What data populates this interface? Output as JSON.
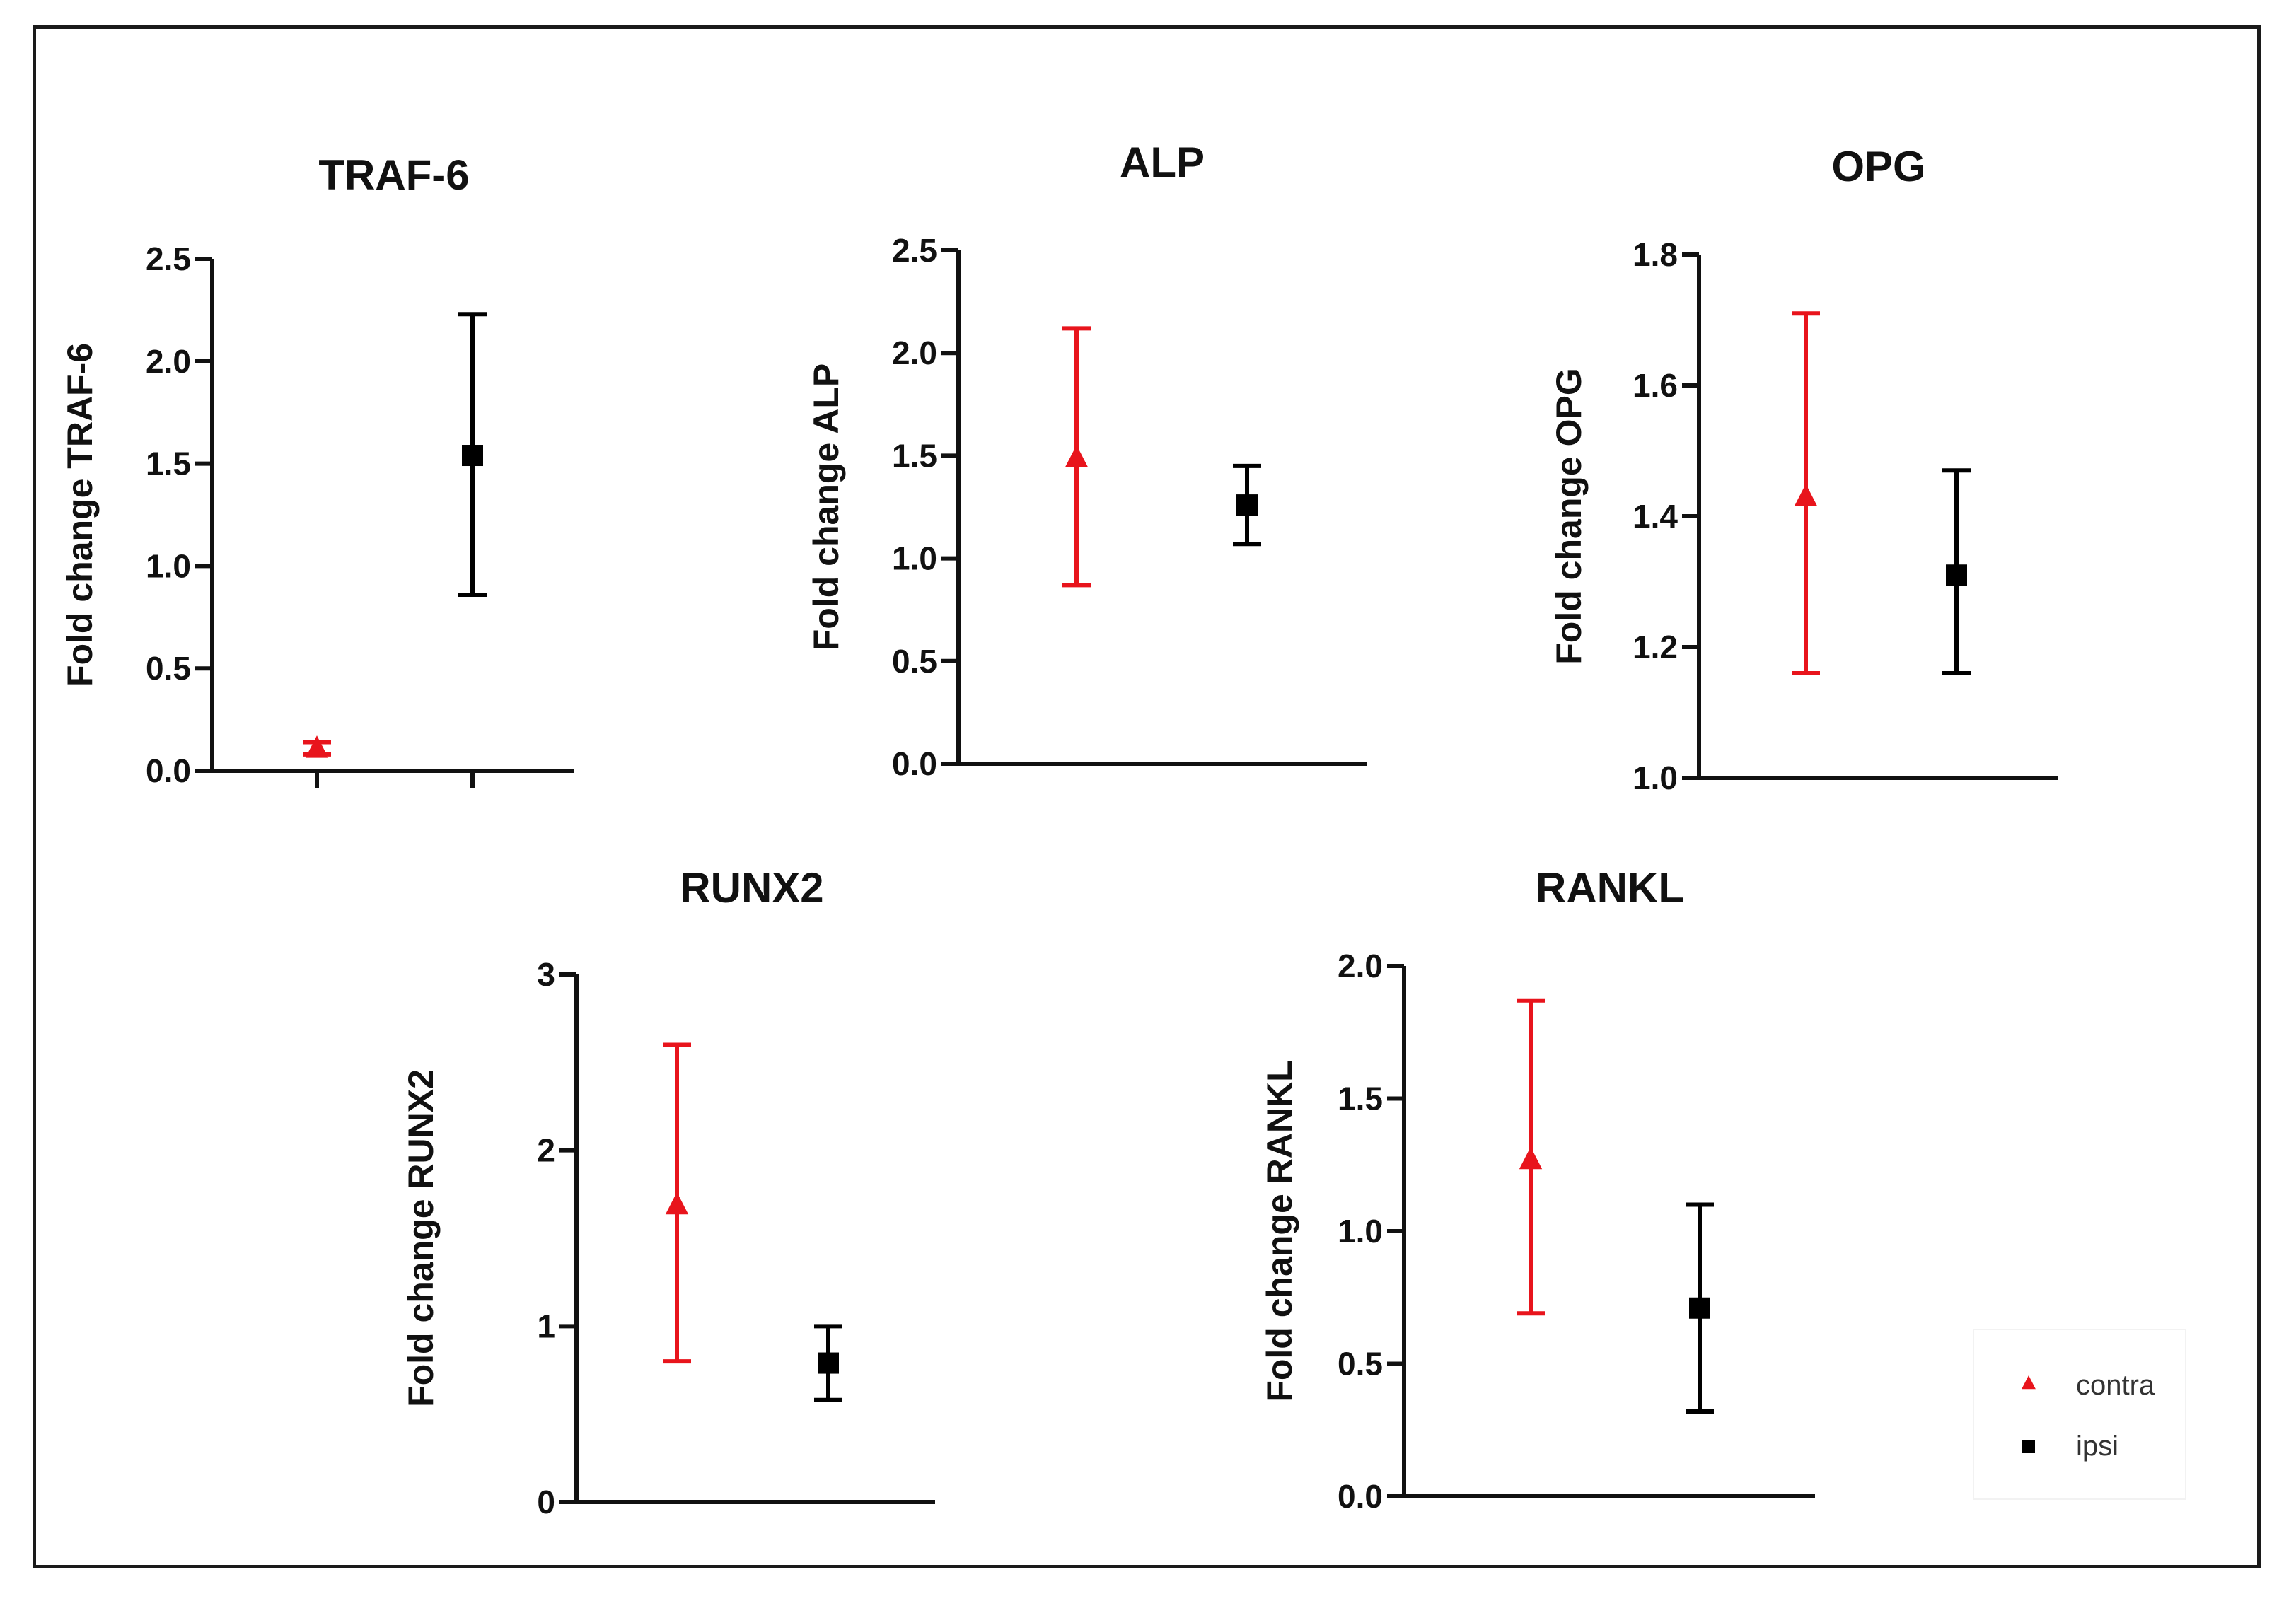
{
  "chart_data": [
    {
      "type": "scatter",
      "title": "TRAF-6",
      "ylabel": "Fold change TRAF-6",
      "xlabel": "",
      "ylim": [
        0,
        2.5
      ],
      "yticks": [
        0.0,
        0.5,
        1.0,
        1.5,
        2.0,
        2.5
      ],
      "ytick_labels": [
        "0.0",
        "0.5",
        "1.0",
        "1.5",
        "2.0",
        "2.5"
      ],
      "series": [
        {
          "name": "contra",
          "mean": 0.11,
          "low": 0.08,
          "high": 0.14
        },
        {
          "name": "ipsi",
          "mean": 1.54,
          "low": 0.86,
          "high": 2.23
        }
      ]
    },
    {
      "type": "scatter",
      "title": "ALP",
      "ylabel": "Fold change ALP",
      "xlabel": "",
      "ylim": [
        0,
        2.5
      ],
      "yticks": [
        0.0,
        0.5,
        1.0,
        1.5,
        2.0,
        2.5
      ],
      "ytick_labels": [
        "0.0",
        "0.5",
        "1.0",
        "1.5",
        "2.0",
        "2.5"
      ],
      "series": [
        {
          "name": "contra",
          "mean": 1.49,
          "low": 0.87,
          "high": 2.12
        },
        {
          "name": "ipsi",
          "mean": 1.26,
          "low": 1.07,
          "high": 1.45
        }
      ]
    },
    {
      "type": "scatter",
      "title": "OPG",
      "ylabel": "Fold change OPG",
      "xlabel": "",
      "ylim": [
        1.0,
        1.8
      ],
      "yticks": [
        1.0,
        1.2,
        1.4,
        1.6,
        1.8
      ],
      "ytick_labels": [
        "1.0",
        "1.2",
        "1.4",
        "1.6",
        "1.8"
      ],
      "series": [
        {
          "name": "contra",
          "mean": 1.43,
          "low": 1.16,
          "high": 1.71
        },
        {
          "name": "ipsi",
          "mean": 1.31,
          "low": 1.16,
          "high": 1.47
        }
      ]
    },
    {
      "type": "scatter",
      "title": "RUNX2",
      "ylabel": "Fold change RUNX2",
      "xlabel": "",
      "ylim": [
        0,
        3
      ],
      "yticks": [
        0,
        1,
        2,
        3
      ],
      "ytick_labels": [
        "0",
        "1",
        "2",
        "3"
      ],
      "series": [
        {
          "name": "contra",
          "mean": 1.69,
          "low": 0.8,
          "high": 2.6
        },
        {
          "name": "ipsi",
          "mean": 0.79,
          "low": 0.58,
          "high": 1.0
        }
      ]
    },
    {
      "type": "scatter",
      "title": "RANKL",
      "ylabel": "Fold change RANKL",
      "xlabel": "",
      "ylim": [
        0,
        2.0
      ],
      "yticks": [
        0.0,
        0.5,
        1.0,
        1.5,
        2.0
      ],
      "ytick_labels": [
        "0.0",
        "0.5",
        "1.0",
        "1.5",
        "2.0"
      ],
      "series": [
        {
          "name": "contra",
          "mean": 1.27,
          "low": 0.69,
          "high": 1.87
        },
        {
          "name": "ipsi",
          "mean": 0.71,
          "low": 0.32,
          "high": 1.1
        }
      ]
    }
  ],
  "legend": {
    "items": [
      {
        "label": "contra",
        "marker": "triangle",
        "color": "#e8141c"
      },
      {
        "label": "ipsi",
        "marker": "square",
        "color": "#000000"
      }
    ]
  },
  "colors": {
    "contra": "#e8141c",
    "ipsi": "#000000",
    "axis": "#111111"
  }
}
